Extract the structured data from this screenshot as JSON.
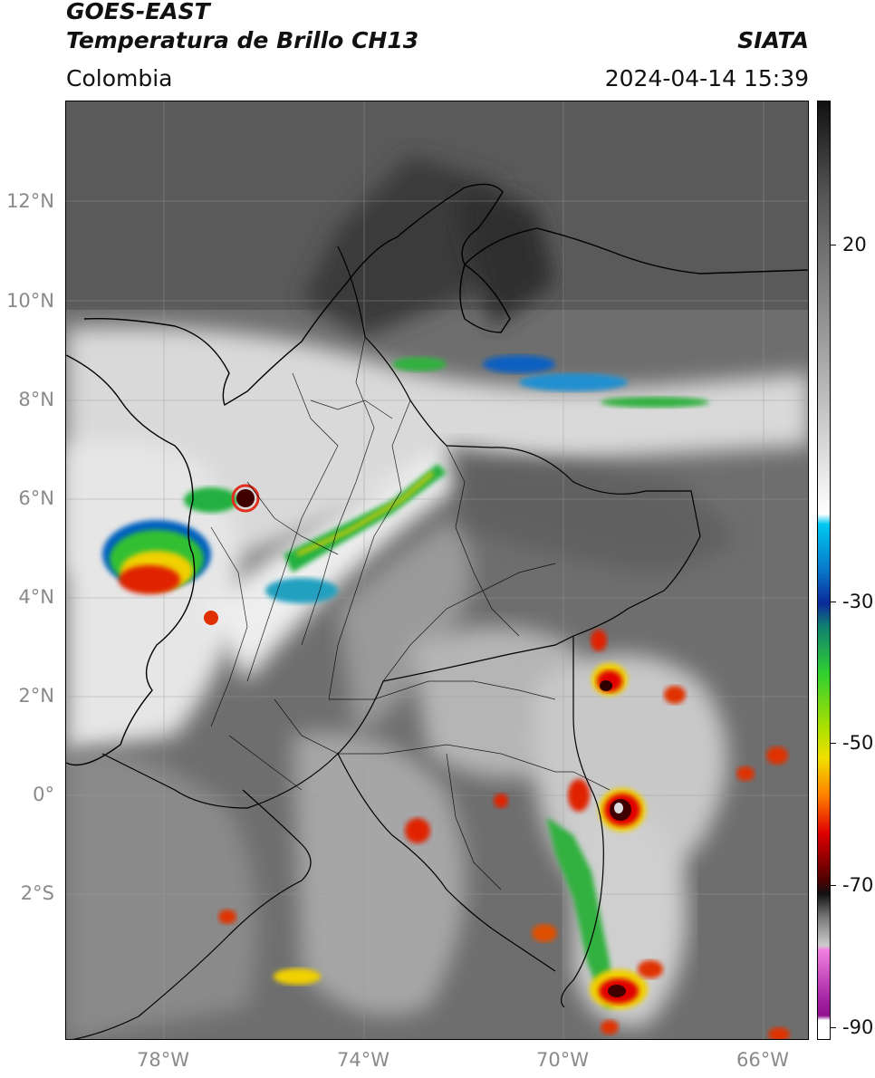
{
  "header": {
    "satellite": "GOES-EAST",
    "product": "Temperatura de Brillo CH13",
    "agency": "SIATA",
    "region": "Colombia",
    "datetime": "2024-04-14 15:39"
  },
  "map": {
    "lat_labels": [
      "12°N",
      "10°N",
      "8°N",
      "6°N",
      "4°N",
      "2°N",
      "0°",
      "2°S"
    ],
    "lon_labels": [
      "78°W",
      "74°W",
      "70°W",
      "66°W"
    ],
    "features": [
      "coastline",
      "country-borders",
      "department-borders",
      "cloud-top-temperature"
    ]
  },
  "colorbar": {
    "labels": [
      "20",
      "-30",
      "-50",
      "-70",
      "-90"
    ],
    "colors": {
      "warm_dark": "#111111",
      "warm_gray": "#888888",
      "light": "#ffffff",
      "cyan": "#00c8f0",
      "blue": "#0a2a9a",
      "green": "#30d030",
      "yellow": "#f0e000",
      "orange": "#ff8000",
      "red": "#e00000",
      "dark_red": "#500000",
      "pink": "#f080e0",
      "purple": "#901090"
    }
  }
}
